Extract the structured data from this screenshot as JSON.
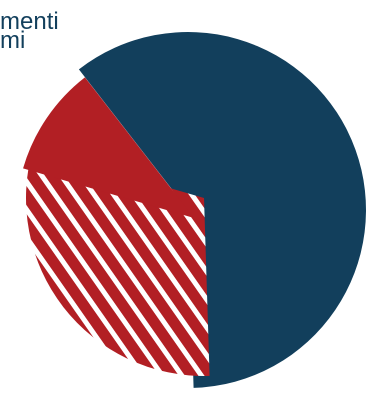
{
  "colors": {
    "primary": "#123f5c",
    "accent": "#b21f24",
    "background": "#ffffff"
  },
  "title_lines": [
    "menti",
    "mi"
  ],
  "chart_data": {
    "type": "pie",
    "title": "",
    "slices": [
      {
        "value": 60,
        "color": "#123f5c",
        "pattern": "none"
      },
      {
        "value": 30,
        "color": "#b21f24",
        "pattern": "diagonal-stripes"
      },
      {
        "value": 10,
        "color": "#b21f24",
        "pattern": "solid"
      }
    ]
  }
}
